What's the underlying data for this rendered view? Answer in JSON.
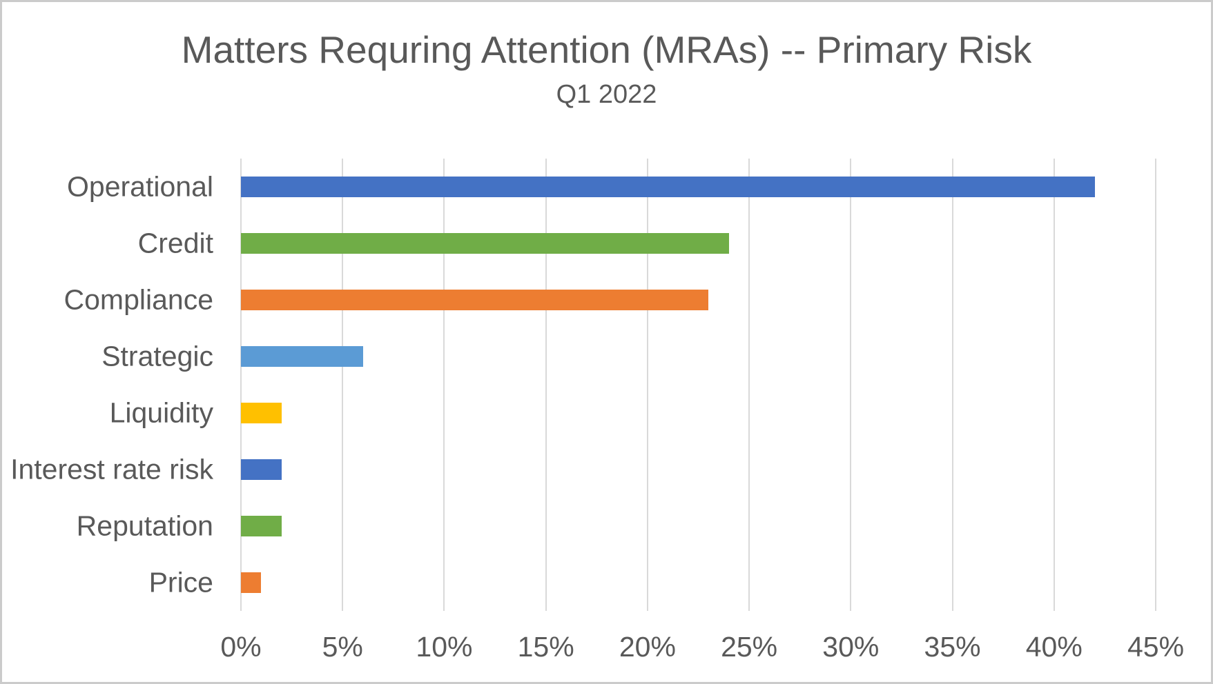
{
  "chart_data": {
    "type": "bar",
    "orientation": "horizontal",
    "title": "Matters Requring Attention (MRAs) -- Primary Risk",
    "subtitle": "Q1 2022",
    "categories": [
      "Operational",
      "Credit",
      "Compliance",
      "Strategic",
      "Liquidity",
      "Interest rate risk",
      "Reputation",
      "Price"
    ],
    "values": [
      42,
      24,
      23,
      6,
      2,
      2,
      2,
      1
    ],
    "unit": "%",
    "bar_colors": [
      "#4472C4",
      "#70AD47",
      "#ED7D31",
      "#5B9BD5",
      "#FFC000",
      "#4472C4",
      "#70AD47",
      "#ED7D31"
    ],
    "xlim": [
      0,
      45
    ],
    "x_tick_values": [
      0,
      5,
      10,
      15,
      20,
      25,
      30,
      35,
      40,
      45
    ],
    "x_ticks": [
      "0%",
      "5%",
      "10%",
      "15%",
      "20%",
      "25%",
      "30%",
      "35%",
      "40%",
      "45%"
    ],
    "xlabel": "",
    "ylabel": "",
    "grid": "vertical",
    "gridline_color": "#d9d9d9",
    "text_color": "#595959",
    "background_color": "#ffffff",
    "legend": "none"
  }
}
